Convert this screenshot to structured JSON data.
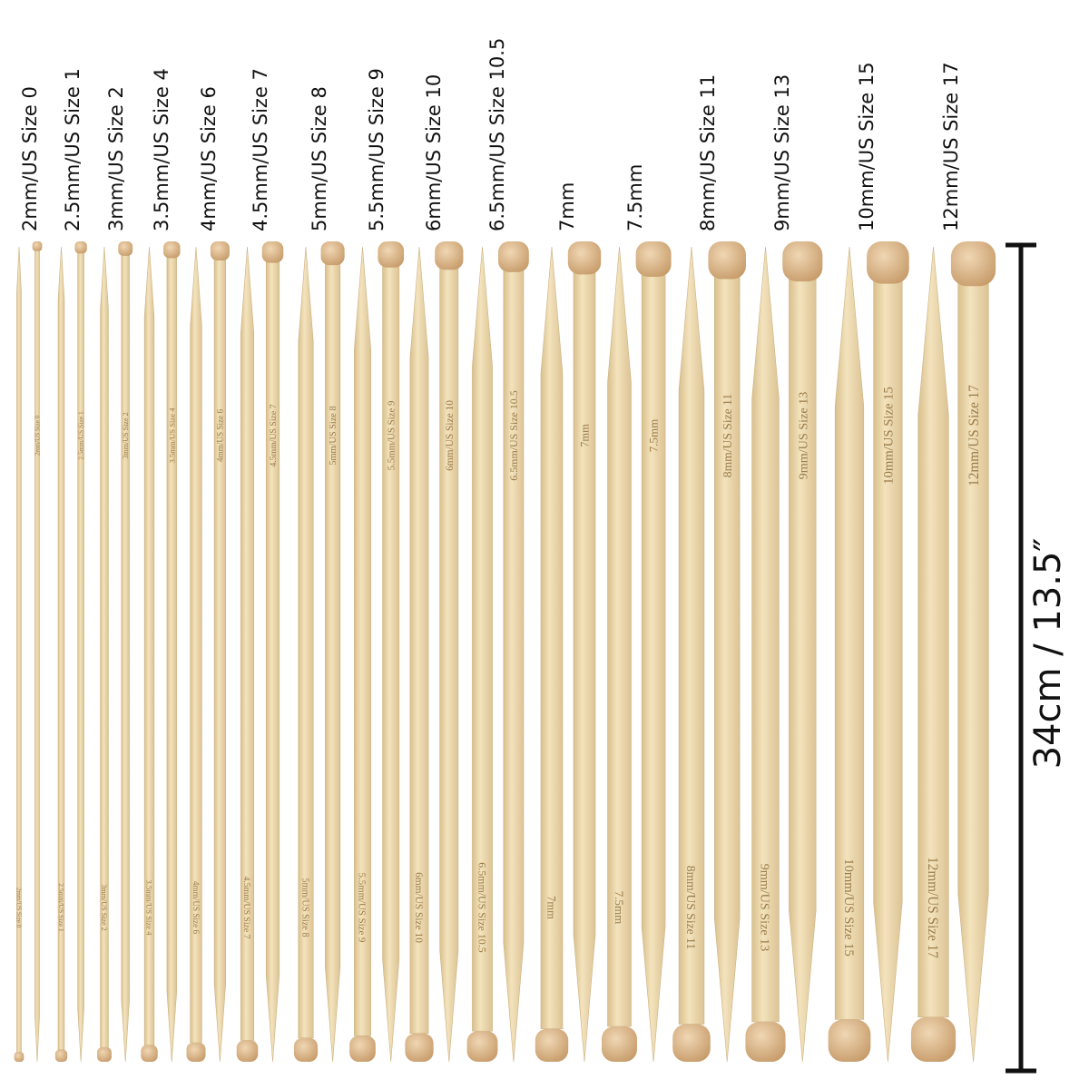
{
  "sizes": [
    "2mm/US Size 0",
    "2.5mm/US Size 1",
    "3mm/US Size 2",
    "3.5mm/US Size 4",
    "4mm/US Size 6",
    "4.5mm/US Size 7",
    "5mm/US Size 8",
    "5.5mm/US Size 9",
    "6mm/US Size 10",
    "6.5mm/US Size 10.5",
    "7mm",
    "7.5mm",
    "8mm/US Size 11",
    "9mm/US Size 13",
    "10mm/US Size 15",
    "12mm/US Size 17"
  ],
  "length_label": "34cm / 13.5″"
}
